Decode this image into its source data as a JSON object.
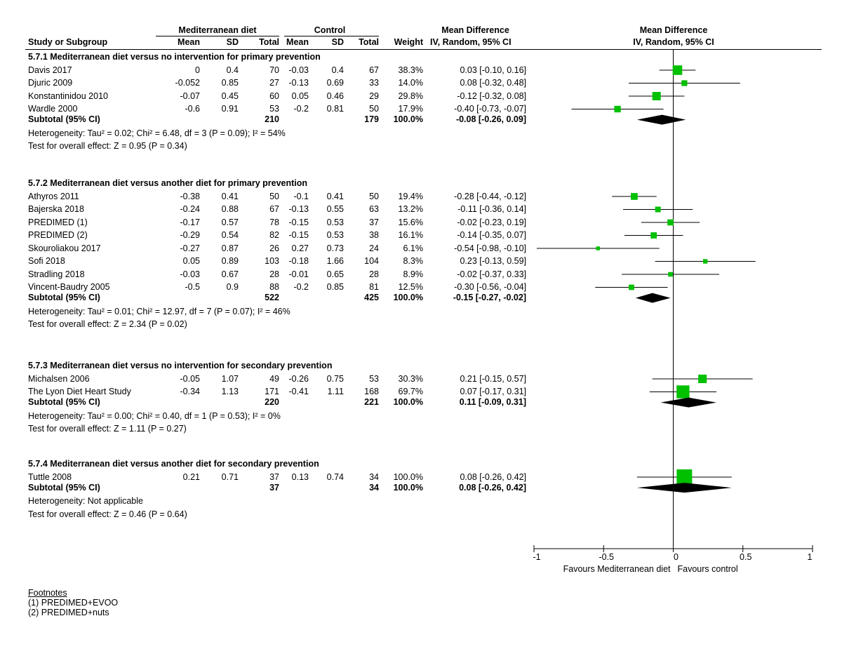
{
  "header": {
    "col_study": "Study or Subgroup",
    "group_exp": "Mediterranean diet",
    "group_ctl": "Control",
    "col_mean": "Mean",
    "col_sd": "SD",
    "col_total": "Total",
    "col_weight": "Weight",
    "md_title": "Mean Difference",
    "md_sub": "IV, Random, 95% CI",
    "plot_title": "Mean Difference",
    "plot_sub": "IV, Random, 95% CI"
  },
  "groups": [
    {
      "title": "5.7.1 Mediterranean diet versus no intervention for primary prevention",
      "studies": [
        {
          "name": "Davis 2017",
          "e_mean": "0",
          "e_sd": "0.4",
          "e_total": "70",
          "c_mean": "-0.03",
          "c_sd": "0.4",
          "c_total": "67",
          "weight": "38.3%",
          "ci": "0.03 [-0.10, 0.16]",
          "md": 0.03,
          "lo": -0.1,
          "hi": 0.16,
          "w": 38.3
        },
        {
          "name": "Djuric 2009",
          "e_mean": "-0.052",
          "e_sd": "0.85",
          "e_total": "27",
          "c_mean": "-0.13",
          "c_sd": "0.69",
          "c_total": "33",
          "weight": "14.0%",
          "ci": "0.08 [-0.32, 0.48]",
          "md": 0.08,
          "lo": -0.32,
          "hi": 0.48,
          "w": 14.0
        },
        {
          "name": "Konstantinidou 2010",
          "e_mean": "-0.07",
          "e_sd": "0.45",
          "e_total": "60",
          "c_mean": "0.05",
          "c_sd": "0.46",
          "c_total": "29",
          "weight": "29.8%",
          "ci": "-0.12 [-0.32, 0.08]",
          "md": -0.12,
          "lo": -0.32,
          "hi": 0.08,
          "w": 29.8
        },
        {
          "name": "Wardle 2000",
          "e_mean": "-0.6",
          "e_sd": "0.91",
          "e_total": "53",
          "c_mean": "-0.2",
          "c_sd": "0.81",
          "c_total": "50",
          "weight": "17.9%",
          "ci": "-0.40 [-0.73, -0.07]",
          "md": -0.4,
          "lo": -0.73,
          "hi": -0.07,
          "w": 17.9
        }
      ],
      "subtotal": {
        "label": "Subtotal (95% CI)",
        "e_total": "210",
        "c_total": "179",
        "weight": "100.0%",
        "ci": "-0.08 [-0.26, 0.09]",
        "md": -0.08,
        "lo": -0.26,
        "hi": 0.09
      },
      "heterogeneity": "Heterogeneity: Tau² = 0.02; Chi² = 6.48, df = 3 (P = 0.09); I² = 54%",
      "overall": "Test for overall effect: Z = 0.95 (P = 0.34)"
    },
    {
      "title": "5.7.2 Mediterranean diet versus another diet for primary prevention",
      "studies": [
        {
          "name": "Athyros 2011",
          "e_mean": "-0.38",
          "e_sd": "0.41",
          "e_total": "50",
          "c_mean": "-0.1",
          "c_sd": "0.41",
          "c_total": "50",
          "weight": "19.4%",
          "ci": "-0.28 [-0.44, -0.12]",
          "md": -0.28,
          "lo": -0.44,
          "hi": -0.12,
          "w": 19.4
        },
        {
          "name": "Bajerska 2018",
          "e_mean": "-0.24",
          "e_sd": "0.88",
          "e_total": "67",
          "c_mean": "-0.13",
          "c_sd": "0.55",
          "c_total": "63",
          "weight": "13.2%",
          "ci": "-0.11 [-0.36, 0.14]",
          "md": -0.11,
          "lo": -0.36,
          "hi": 0.14,
          "w": 13.2
        },
        {
          "name": "PREDIMED (1)",
          "e_mean": "-0.17",
          "e_sd": "0.57",
          "e_total": "78",
          "c_mean": "-0.15",
          "c_sd": "0.53",
          "c_total": "37",
          "weight": "15.6%",
          "ci": "-0.02 [-0.23, 0.19]",
          "md": -0.02,
          "lo": -0.23,
          "hi": 0.19,
          "w": 15.6
        },
        {
          "name": "PREDIMED (2)",
          "e_mean": "-0.29",
          "e_sd": "0.54",
          "e_total": "82",
          "c_mean": "-0.15",
          "c_sd": "0.53",
          "c_total": "38",
          "weight": "16.1%",
          "ci": "-0.14 [-0.35, 0.07]",
          "md": -0.14,
          "lo": -0.35,
          "hi": 0.07,
          "w": 16.1
        },
        {
          "name": "Skouroliakou 2017",
          "e_mean": "-0.27",
          "e_sd": "0.87",
          "e_total": "26",
          "c_mean": "0.27",
          "c_sd": "0.73",
          "c_total": "24",
          "weight": "6.1%",
          "ci": "-0.54 [-0.98, -0.10]",
          "md": -0.54,
          "lo": -0.98,
          "hi": -0.1,
          "w": 6.1
        },
        {
          "name": "Sofi 2018",
          "e_mean": "0.05",
          "e_sd": "0.89",
          "e_total": "103",
          "c_mean": "-0.18",
          "c_sd": "1.66",
          "c_total": "104",
          "weight": "8.3%",
          "ci": "0.23 [-0.13, 0.59]",
          "md": 0.23,
          "lo": -0.13,
          "hi": 0.59,
          "w": 8.3
        },
        {
          "name": "Stradling 2018",
          "e_mean": "-0.03",
          "e_sd": "0.67",
          "e_total": "28",
          "c_mean": "-0.01",
          "c_sd": "0.65",
          "c_total": "28",
          "weight": "8.9%",
          "ci": "-0.02 [-0.37, 0.33]",
          "md": -0.02,
          "lo": -0.37,
          "hi": 0.33,
          "w": 8.9
        },
        {
          "name": "Vincent-Baudry 2005",
          "e_mean": "-0.5",
          "e_sd": "0.9",
          "e_total": "88",
          "c_mean": "-0.2",
          "c_sd": "0.85",
          "c_total": "81",
          "weight": "12.5%",
          "ci": "-0.30 [-0.56, -0.04]",
          "md": -0.3,
          "lo": -0.56,
          "hi": -0.04,
          "w": 12.5
        }
      ],
      "subtotal": {
        "label": "Subtotal (95% CI)",
        "e_total": "522",
        "c_total": "425",
        "weight": "100.0%",
        "ci": "-0.15 [-0.27, -0.02]",
        "md": -0.15,
        "lo": -0.27,
        "hi": -0.02
      },
      "heterogeneity": "Heterogeneity: Tau² = 0.01; Chi² = 12.97, df = 7 (P = 0.07); I² = 46%",
      "overall": "Test for overall effect: Z = 2.34 (P = 0.02)"
    },
    {
      "title": "5.7.3 Mediterranean diet versus no intervention for secondary prevention",
      "studies": [
        {
          "name": "Michalsen 2006",
          "e_mean": "-0.05",
          "e_sd": "1.07",
          "e_total": "49",
          "c_mean": "-0.26",
          "c_sd": "0.75",
          "c_total": "53",
          "weight": "30.3%",
          "ci": "0.21 [-0.15, 0.57]",
          "md": 0.21,
          "lo": -0.15,
          "hi": 0.57,
          "w": 30.3
        },
        {
          "name": "The Lyon Diet Heart Study",
          "e_mean": "-0.34",
          "e_sd": "1.13",
          "e_total": "171",
          "c_mean": "-0.41",
          "c_sd": "1.11",
          "c_total": "168",
          "weight": "69.7%",
          "ci": "0.07 [-0.17, 0.31]",
          "md": 0.07,
          "lo": -0.17,
          "hi": 0.31,
          "w": 69.7
        }
      ],
      "subtotal": {
        "label": "Subtotal (95% CI)",
        "e_total": "220",
        "c_total": "221",
        "weight": "100.0%",
        "ci": "0.11 [-0.09, 0.31]",
        "md": 0.11,
        "lo": -0.09,
        "hi": 0.31
      },
      "heterogeneity": "Heterogeneity: Tau² = 0.00; Chi² = 0.40, df = 1 (P = 0.53); I² = 0%",
      "overall": "Test for overall effect: Z = 1.11 (P = 0.27)"
    },
    {
      "title": "5.7.4 Mediterranean diet versus another diet for secondary prevention",
      "studies": [
        {
          "name": "Tuttle 2008",
          "e_mean": "0.21",
          "e_sd": "0.71",
          "e_total": "37",
          "c_mean": "0.13",
          "c_sd": "0.74",
          "c_total": "34",
          "weight": "100.0%",
          "ci": "0.08 [-0.26, 0.42]",
          "md": 0.08,
          "lo": -0.26,
          "hi": 0.42,
          "w": 100.0
        }
      ],
      "subtotal": {
        "label": "Subtotal (95% CI)",
        "e_total": "37",
        "c_total": "34",
        "weight": "100.0%",
        "ci": "0.08 [-0.26, 0.42]",
        "md": 0.08,
        "lo": -0.26,
        "hi": 0.42
      },
      "heterogeneity": "Heterogeneity: Not applicable",
      "overall": "Test for overall effect: Z = 0.46 (P = 0.64)"
    }
  ],
  "footnotes": {
    "title": "Footnotes",
    "items": [
      "(1) PREDIMED+EVOO",
      "(2) PREDIMED+nuts"
    ]
  },
  "chart_data": {
    "type": "forest",
    "xlim": [
      -1,
      1
    ],
    "ticks": [
      {
        "value": -1,
        "label": "-1"
      },
      {
        "value": -0.5,
        "label": "-0.5"
      },
      {
        "value": 0,
        "label": "0"
      },
      {
        "value": 0.5,
        "label": "0.5"
      },
      {
        "value": 1,
        "label": "1"
      }
    ],
    "favours_left": "Favours Mediterranean diet",
    "favours_right": "Favours control",
    "colors": {
      "study_marker": "#00c000",
      "diamond": "#000000",
      "line": "#000000"
    }
  }
}
